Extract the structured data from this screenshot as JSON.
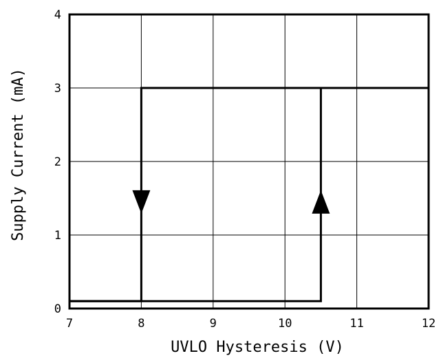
{
  "chart_data": {
    "type": "line",
    "title": "",
    "xlabel": "UVLO Hysteresis (V)",
    "ylabel": "Supply Current (mA)",
    "xlim": [
      7,
      12
    ],
    "ylim": [
      0,
      4
    ],
    "x_ticks": [
      "7",
      "8",
      "9",
      "10",
      "11",
      "12"
    ],
    "y_ticks": [
      "0",
      "1",
      "2",
      "3",
      "4"
    ],
    "grid": true,
    "series": [
      {
        "x": [
          7,
          10.5,
          10.5,
          12
        ],
        "y": [
          0.1,
          0.1,
          3,
          3
        ],
        "direction": "up"
      },
      {
        "x": [
          12,
          8,
          8,
          7
        ],
        "y": [
          3,
          3,
          0.1,
          0.1
        ],
        "direction": "down"
      }
    ],
    "annotations": [
      {
        "shape": "arrow-down",
        "x": 8,
        "y": 1.45
      },
      {
        "shape": "arrow-up",
        "x": 10.5,
        "y": 1.45
      }
    ]
  }
}
